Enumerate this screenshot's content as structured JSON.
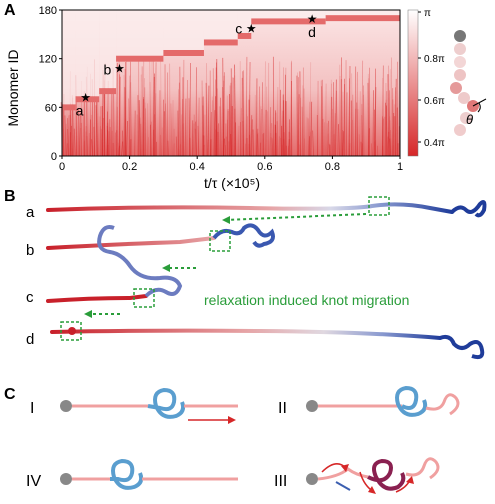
{
  "panels": {
    "A": "A",
    "B": "B",
    "C": "C"
  },
  "chart_data": {
    "type": "heatmap",
    "ylabel": "Monomer ID",
    "xlabel": "t/τ  (×10⁵)",
    "xlim": [
      0,
      1
    ],
    "ylim": [
      0,
      180
    ],
    "xticks": [
      "0",
      "0.2",
      "0.4",
      "0.6",
      "0.8",
      "1"
    ],
    "yticks": [
      "0",
      "60",
      "120",
      "180"
    ],
    "colorbar": {
      "ticks": [
        "π",
        "0.8π",
        "0.6π",
        "0.4π"
      ],
      "colors": [
        "#ffffff",
        "#d62728"
      ]
    },
    "knot_band": [
      {
        "x0": 0.0,
        "x1": 0.04,
        "y": 60
      },
      {
        "x0": 0.04,
        "x1": 0.11,
        "y": 70
      },
      {
        "x0": 0.11,
        "x1": 0.16,
        "y": 80
      },
      {
        "x0": 0.16,
        "x1": 0.3,
        "y": 120
      },
      {
        "x0": 0.3,
        "x1": 0.42,
        "y": 127
      },
      {
        "x0": 0.42,
        "x1": 0.52,
        "y": 140
      },
      {
        "x0": 0.52,
        "x1": 0.56,
        "y": 148
      },
      {
        "x0": 0.56,
        "x1": 0.78,
        "y": 166
      },
      {
        "x0": 0.78,
        "x1": 1.0,
        "y": 170
      }
    ],
    "markers": [
      {
        "label": "a",
        "x": 0.07,
        "y": 72
      },
      {
        "label": "b",
        "x": 0.17,
        "y": 108
      },
      {
        "label": "c",
        "x": 0.56,
        "y": 157
      },
      {
        "label": "d",
        "x": 0.74,
        "y": 169
      }
    ]
  },
  "inset": {
    "angle_label": "θ"
  },
  "panelB": {
    "rows": [
      "a",
      "b",
      "c",
      "d"
    ],
    "caption": "relaxation induced knot migration"
  },
  "panelC": {
    "states": [
      "I",
      "II",
      "IV",
      "III"
    ]
  },
  "colors": {
    "red": "#c8202a",
    "light_red": "#f0a0a0",
    "blue": "#1f3c9a",
    "light_blue": "#5a9ecf",
    "green": "#2a9d3a",
    "grey": "#888888"
  }
}
